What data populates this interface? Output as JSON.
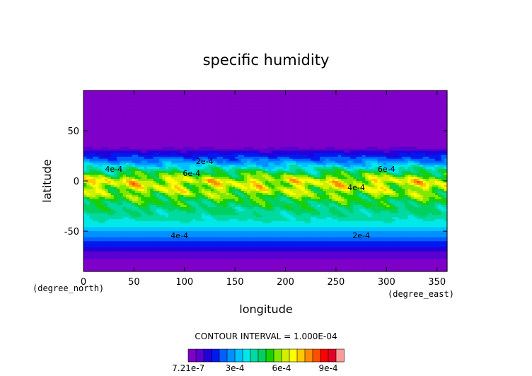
{
  "chart_data": {
    "type": "heatmap",
    "title": "specific humidity",
    "xlabel": "longitude",
    "ylabel": "latitude",
    "x_unit": "(degree_east)",
    "y_unit": "(degree_north)",
    "xlim": [
      0,
      360
    ],
    "ylim": [
      -90,
      90
    ],
    "x_ticks": [
      "0",
      "50",
      "100",
      "150",
      "200",
      "250",
      "300",
      "350"
    ],
    "y_ticks": [
      "50",
      "0",
      "-50"
    ],
    "contour_interval_text": "CONTOUR INTERVAL = 1.000E-04",
    "contour_labels": [
      "2e-4",
      "4e-4",
      "6e-4",
      "6e-4",
      "4e-4",
      "4e-4",
      "2e-4"
    ],
    "colorbar": {
      "tick_labels": [
        "7.21e-7",
        "3e-4",
        "6e-4",
        "9e-4"
      ],
      "colors": [
        "#7f00c8",
        "#5a00d0",
        "#2300d8",
        "#0018f0",
        "#0060ff",
        "#0090ff",
        "#00c0ff",
        "#00e8e8",
        "#00d9a0",
        "#00d060",
        "#18d000",
        "#80e800",
        "#d0f000",
        "#ffff00",
        "#ffc800",
        "#ff8c00",
        "#ff5000",
        "#ff0000",
        "#e00028",
        "#ff9a9a"
      ]
    },
    "latitude_profile": {
      "lat": [
        90,
        32,
        30,
        20,
        10,
        0,
        -10,
        -20,
        -30,
        -40,
        -50,
        -60,
        -70,
        -80,
        -90
      ],
      "q": [
        1e-06,
        5e-05,
        0.0001,
        0.00025,
        0.00045,
        0.00065,
        0.0006,
        0.0005,
        0.00045,
        0.0004,
        0.0003,
        0.0002,
        0.0001,
        4e-05,
        1e-06
      ]
    }
  }
}
